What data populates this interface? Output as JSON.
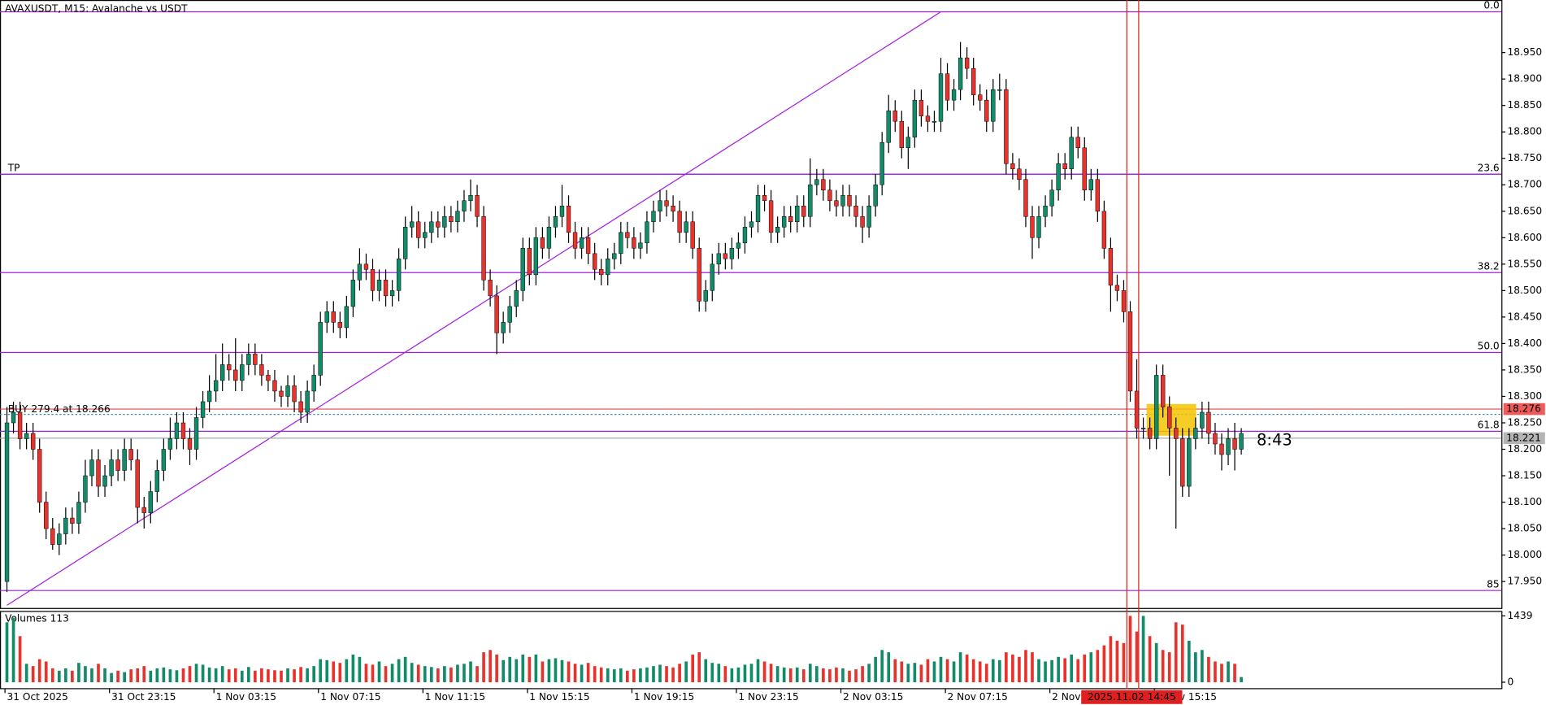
{
  "chart_data": {
    "type": "candlestick",
    "title": "AVAXUSDT, M15:  Avalanche vs USDT",
    "ylim": [
      17.9,
      19.04
    ],
    "yticks": [
      {
        "value": 17.95,
        "label": "17.950"
      },
      {
        "value": 18.0,
        "label": "18.000"
      },
      {
        "value": 18.05,
        "label": "18.050"
      },
      {
        "value": 18.1,
        "label": "18.100"
      },
      {
        "value": 18.15,
        "label": "18.150"
      },
      {
        "value": 18.2,
        "label": "18.200"
      },
      {
        "value": 18.25,
        "label": "18.250"
      },
      {
        "value": 18.3,
        "label": "18.300"
      },
      {
        "value": 18.35,
        "label": "18.350"
      },
      {
        "value": 18.4,
        "label": "18.400"
      },
      {
        "value": 18.45,
        "label": "18.450"
      },
      {
        "value": 18.5,
        "label": "18.500"
      },
      {
        "value": 18.55,
        "label": "18.550"
      },
      {
        "value": 18.6,
        "label": "18.600"
      },
      {
        "value": 18.65,
        "label": "18.650"
      },
      {
        "value": 18.7,
        "label": "18.700"
      },
      {
        "value": 18.75,
        "label": "18.750"
      },
      {
        "value": 18.8,
        "label": "18.800"
      },
      {
        "value": 18.85,
        "label": "18.850"
      },
      {
        "value": 18.9,
        "label": "18.900"
      },
      {
        "value": 18.95,
        "label": "18.950"
      }
    ],
    "xticks": [
      {
        "value": 0,
        "label": "31 Oct 2025"
      },
      {
        "value": 16,
        "label": "31 Oct 23:15"
      },
      {
        "value": 32,
        "label": "1 Nov 03:15"
      },
      {
        "value": 48,
        "label": "1 Nov 07:15"
      },
      {
        "value": 64,
        "label": "1 Nov 11:15"
      },
      {
        "value": 80,
        "label": "1 Nov 15:15"
      },
      {
        "value": 96,
        "label": "1 Nov 19:15"
      },
      {
        "value": 112,
        "label": "1 Nov 23:15"
      },
      {
        "value": 128,
        "label": "2 Nov 03:15"
      },
      {
        "value": 144,
        "label": "2 Nov 07:15"
      },
      {
        "value": 160,
        "label": "2 Nov 11:15"
      },
      {
        "value": 176,
        "label": "2 Nov 15:15"
      }
    ],
    "up_color": "#128c68",
    "down_color": "#e8332c",
    "open": [
      17.95,
      18.25,
      18.27,
      18.22,
      18.23,
      18.2,
      18.1,
      18.05,
      18.02,
      18.04,
      18.07,
      18.06,
      18.1,
      18.15,
      18.18,
      18.13,
      18.15,
      18.18,
      18.16,
      18.2,
      18.18,
      18.09,
      18.08,
      18.12,
      18.16,
      18.2,
      18.22,
      18.25,
      18.22,
      18.2,
      18.26,
      18.29,
      18.31,
      18.33,
      18.36,
      18.35,
      18.33,
      18.36,
      18.38,
      18.36,
      18.34,
      18.33,
      18.31,
      18.3,
      18.32,
      18.29,
      18.27,
      18.31,
      18.34,
      18.44,
      18.46,
      18.44,
      18.43,
      18.47,
      18.52,
      18.55,
      18.54,
      18.5,
      18.52,
      18.49,
      18.5,
      18.56,
      18.62,
      18.63,
      18.6,
      18.61,
      18.63,
      18.62,
      18.64,
      18.63,
      18.65,
      18.67,
      18.68,
      18.64,
      18.52,
      18.49,
      18.42,
      18.44,
      18.47,
      18.5,
      18.58,
      18.53,
      18.6,
      18.58,
      18.62,
      18.64,
      18.66,
      18.61,
      18.58,
      18.6,
      18.57,
      18.54,
      18.53,
      18.56,
      18.57,
      18.61,
      18.6,
      18.58,
      18.59,
      18.63,
      18.65,
      18.67,
      18.66,
      18.65,
      18.61,
      18.63,
      18.58,
      18.48,
      18.5,
      18.55,
      18.57,
      18.56,
      18.58,
      18.59,
      18.62,
      18.63,
      18.68,
      18.67,
      18.61,
      18.62,
      18.64,
      18.63,
      18.66,
      18.64,
      18.7,
      18.71,
      18.69,
      18.67,
      18.66,
      18.68,
      18.66,
      18.64,
      18.62,
      18.66,
      18.7,
      18.78,
      18.84,
      18.82,
      18.77,
      18.79,
      18.86,
      18.83,
      18.82,
      18.82,
      18.91,
      18.86,
      18.88,
      18.94,
      18.92,
      18.87,
      18.86,
      18.82,
      18.88,
      18.88,
      18.74,
      18.73,
      18.71,
      18.64,
      18.6,
      18.64,
      18.66,
      18.69,
      18.74,
      18.73,
      18.79,
      18.77,
      18.69,
      18.71,
      18.65,
      18.58,
      18.51,
      18.5,
      18.46,
      18.31,
      18.24,
      18.24,
      18.22,
      18.34,
      18.28,
      18.24,
      18.22,
      18.13,
      18.22,
      18.24,
      18.27,
      18.23,
      18.21,
      18.19,
      18.22,
      18.2
    ],
    "high": [
      18.28,
      18.29,
      18.29,
      18.25,
      18.25,
      18.22,
      18.12,
      18.07,
      18.06,
      18.09,
      18.09,
      18.12,
      18.18,
      18.2,
      18.2,
      18.17,
      18.2,
      18.2,
      18.22,
      18.22,
      18.2,
      18.11,
      18.14,
      18.18,
      18.22,
      18.26,
      18.27,
      18.27,
      18.24,
      18.28,
      18.31,
      18.34,
      18.38,
      18.4,
      18.38,
      18.41,
      18.38,
      18.4,
      18.4,
      18.38,
      18.35,
      18.35,
      18.32,
      18.34,
      18.34,
      18.31,
      18.33,
      18.36,
      18.46,
      18.48,
      18.48,
      18.46,
      18.49,
      18.54,
      18.58,
      18.57,
      18.56,
      18.54,
      18.54,
      18.52,
      18.58,
      18.64,
      18.66,
      18.65,
      18.63,
      18.65,
      18.65,
      18.66,
      18.66,
      18.67,
      18.69,
      18.71,
      18.7,
      18.66,
      18.54,
      18.51,
      18.46,
      18.49,
      18.52,
      18.6,
      18.6,
      18.62,
      18.62,
      18.64,
      18.66,
      18.7,
      18.68,
      18.63,
      18.62,
      18.62,
      18.59,
      18.56,
      18.58,
      18.59,
      18.63,
      18.63,
      18.62,
      18.61,
      18.65,
      18.67,
      18.69,
      18.69,
      18.68,
      18.67,
      18.65,
      18.65,
      18.6,
      18.52,
      18.57,
      18.59,
      18.59,
      18.6,
      18.61,
      18.64,
      18.65,
      18.7,
      18.7,
      18.69,
      18.64,
      18.66,
      18.66,
      18.68,
      18.68,
      18.75,
      18.73,
      18.73,
      18.71,
      18.69,
      18.7,
      18.7,
      18.68,
      18.66,
      18.68,
      18.72,
      18.8,
      18.87,
      18.86,
      18.84,
      18.81,
      18.88,
      18.88,
      18.85,
      18.84,
      18.94,
      18.93,
      18.9,
      18.97,
      18.96,
      18.94,
      18.89,
      18.88,
      18.9,
      18.91,
      18.9,
      18.76,
      18.75,
      18.73,
      18.66,
      18.66,
      18.68,
      18.71,
      18.76,
      18.76,
      18.81,
      18.81,
      18.79,
      18.73,
      18.73,
      18.67,
      18.6,
      18.53,
      18.52,
      18.48,
      18.37,
      18.26,
      18.26,
      18.36,
      18.36,
      18.3,
      18.26,
      18.24,
      18.24,
      18.26,
      18.29,
      18.29,
      18.25,
      18.23,
      18.24,
      18.25,
      18.24
    ],
    "low": [
      17.93,
      18.23,
      18.2,
      18.2,
      18.18,
      18.08,
      18.03,
      18.01,
      18.0,
      18.02,
      18.04,
      18.04,
      18.08,
      18.13,
      18.11,
      18.11,
      18.13,
      18.14,
      18.14,
      18.16,
      18.06,
      18.05,
      18.06,
      18.1,
      18.14,
      18.18,
      18.2,
      18.2,
      18.17,
      18.18,
      18.24,
      18.27,
      18.29,
      18.31,
      18.33,
      18.31,
      18.31,
      18.34,
      18.34,
      18.32,
      18.31,
      18.29,
      18.28,
      18.28,
      18.27,
      18.25,
      18.25,
      18.29,
      18.32,
      18.42,
      18.42,
      18.41,
      18.41,
      18.45,
      18.5,
      18.52,
      18.48,
      18.48,
      18.47,
      18.47,
      18.48,
      18.54,
      18.6,
      18.58,
      18.58,
      18.59,
      18.6,
      18.6,
      18.61,
      18.61,
      18.63,
      18.65,
      18.62,
      18.5,
      18.47,
      18.38,
      18.4,
      18.42,
      18.45,
      18.48,
      18.51,
      18.51,
      18.56,
      18.56,
      18.6,
      18.62,
      18.59,
      18.56,
      18.56,
      18.55,
      18.52,
      18.51,
      18.51,
      18.54,
      18.55,
      18.58,
      18.56,
      18.56,
      18.57,
      18.61,
      18.63,
      18.64,
      18.63,
      18.59,
      18.59,
      18.56,
      18.46,
      18.46,
      18.48,
      18.53,
      18.54,
      18.54,
      18.56,
      18.57,
      18.6,
      18.61,
      18.65,
      18.59,
      18.59,
      18.6,
      18.61,
      18.61,
      18.62,
      18.62,
      18.68,
      18.67,
      18.65,
      18.64,
      18.64,
      18.64,
      18.62,
      18.59,
      18.6,
      18.64,
      18.68,
      18.76,
      18.8,
      18.75,
      18.73,
      18.77,
      18.81,
      18.8,
      18.8,
      18.8,
      18.84,
      18.84,
      18.86,
      18.9,
      18.85,
      18.84,
      18.8,
      18.8,
      18.86,
      18.72,
      18.71,
      18.69,
      18.62,
      18.56,
      18.58,
      18.62,
      18.64,
      18.67,
      18.71,
      18.71,
      18.75,
      18.67,
      18.67,
      18.63,
      18.56,
      18.46,
      18.48,
      18.44,
      18.29,
      18.22,
      18.22,
      18.2,
      18.2,
      18.26,
      18.15,
      18.05,
      18.11,
      18.11,
      18.2,
      18.22,
      18.21,
      18.19,
      18.16,
      18.17,
      18.16,
      18.19
    ],
    "close": [
      18.25,
      18.27,
      18.22,
      18.23,
      18.2,
      18.1,
      18.05,
      18.02,
      18.04,
      18.07,
      18.06,
      18.1,
      18.15,
      18.18,
      18.13,
      18.15,
      18.18,
      18.16,
      18.2,
      18.18,
      18.09,
      18.08,
      18.12,
      18.16,
      18.2,
      18.22,
      18.25,
      18.22,
      18.2,
      18.26,
      18.29,
      18.31,
      18.33,
      18.36,
      18.35,
      18.33,
      18.36,
      18.38,
      18.36,
      18.34,
      18.33,
      18.31,
      18.3,
      18.32,
      18.29,
      18.27,
      18.31,
      18.34,
      18.44,
      18.46,
      18.44,
      18.43,
      18.47,
      18.52,
      18.55,
      18.54,
      18.5,
      18.52,
      18.49,
      18.5,
      18.56,
      18.62,
      18.63,
      18.6,
      18.61,
      18.63,
      18.62,
      18.64,
      18.63,
      18.65,
      18.67,
      18.68,
      18.64,
      18.52,
      18.49,
      18.42,
      18.44,
      18.47,
      18.5,
      18.58,
      18.53,
      18.6,
      18.58,
      18.62,
      18.64,
      18.66,
      18.61,
      18.58,
      18.6,
      18.57,
      18.54,
      18.53,
      18.56,
      18.57,
      18.61,
      18.6,
      18.58,
      18.59,
      18.63,
      18.65,
      18.67,
      18.66,
      18.65,
      18.61,
      18.63,
      18.58,
      18.48,
      18.5,
      18.55,
      18.57,
      18.56,
      18.58,
      18.59,
      18.62,
      18.63,
      18.68,
      18.67,
      18.61,
      18.62,
      18.64,
      18.63,
      18.66,
      18.64,
      18.7,
      18.71,
      18.69,
      18.67,
      18.66,
      18.68,
      18.66,
      18.64,
      18.62,
      18.66,
      18.7,
      18.78,
      18.84,
      18.82,
      18.77,
      18.79,
      18.86,
      18.83,
      18.82,
      18.82,
      18.91,
      18.86,
      18.88,
      18.94,
      18.92,
      18.87,
      18.86,
      18.82,
      18.88,
      18.88,
      18.74,
      18.73,
      18.71,
      18.64,
      18.6,
      18.64,
      18.66,
      18.69,
      18.74,
      18.73,
      18.79,
      18.77,
      18.69,
      18.71,
      18.65,
      18.58,
      18.51,
      18.5,
      18.46,
      18.31,
      18.24,
      18.24,
      18.22,
      18.34,
      18.28,
      18.24,
      18.22,
      18.13,
      18.22,
      18.24,
      18.27,
      18.23,
      18.21,
      18.19,
      18.22,
      18.2,
      18.23
    ],
    "fib_color": "#a21fe0",
    "fib_levels": [
      {
        "label": "0.0",
        "value": 19.027
      },
      {
        "label": "23.6",
        "value": 18.72
      },
      {
        "label": "38.2",
        "value": 18.534
      },
      {
        "label": "50.0",
        "value": 18.383
      },
      {
        "label": "61.8",
        "value": 18.234
      },
      {
        "label": "85",
        "value": 17.933
      }
    ],
    "tp": {
      "label": "TP",
      "value": 18.72
    },
    "trendline": {
      "from": [
        0,
        17.905
      ],
      "to": [
        143,
        19.027
      ]
    },
    "position": {
      "label": "BUY 279.4 at 18.266",
      "value": 18.266
    },
    "stop_price": {
      "label": "18.276",
      "value": 18.276
    },
    "bid": {
      "label": "18.221",
      "value": 18.221
    },
    "timer": "8:43",
    "crosshair_time": "2025.11.02 14:45",
    "volume": {
      "label": "Volumes 113",
      "ylim": [
        0,
        1439
      ],
      "yticks": [
        0,
        1439
      ],
      "values": [
        1300,
        1400,
        1000,
        400,
        350,
        500,
        450,
        300,
        250,
        300,
        250,
        420,
        350,
        300,
        400,
        300,
        200,
        250,
        220,
        280,
        300,
        350,
        250,
        300,
        320,
        280,
        260,
        300,
        350,
        400,
        380,
        320,
        300,
        350,
        280,
        300,
        250,
        330,
        250,
        300,
        280,
        260,
        250,
        300,
        280,
        330,
        300,
        350,
        500,
        480,
        450,
        420,
        500,
        600,
        550,
        400,
        380,
        450,
        350,
        400,
        500,
        550,
        420,
        380,
        350,
        330,
        300,
        350,
        320,
        380,
        400,
        450,
        350,
        650,
        700,
        600,
        480,
        550,
        500,
        600,
        550,
        600,
        450,
        500,
        520,
        480,
        450,
        400,
        380,
        420,
        350,
        320,
        300,
        280,
        300,
        250,
        280,
        300,
        320,
        350,
        380,
        350,
        320,
        400,
        450,
        600,
        650,
        500,
        420,
        400,
        350,
        300,
        320,
        380,
        400,
        500,
        450,
        400,
        350,
        320,
        300,
        320,
        280,
        400,
        350,
        300,
        280,
        320,
        300,
        250,
        280,
        350,
        400,
        550,
        700,
        650,
        500,
        450,
        400,
        420,
        380,
        500,
        450,
        550,
        500,
        450,
        650,
        600,
        500,
        450,
        400,
        500,
        480,
        650,
        600,
        550,
        700,
        650,
        500,
        450,
        480,
        550,
        520,
        600,
        500,
        600,
        650,
        700,
        800,
        1000,
        900,
        850,
        1439,
        1100,
        1439,
        1000,
        850,
        700,
        650,
        1300,
        1250,
        900,
        650,
        700,
        550,
        450,
        400,
        450,
        400,
        113
      ]
    }
  }
}
